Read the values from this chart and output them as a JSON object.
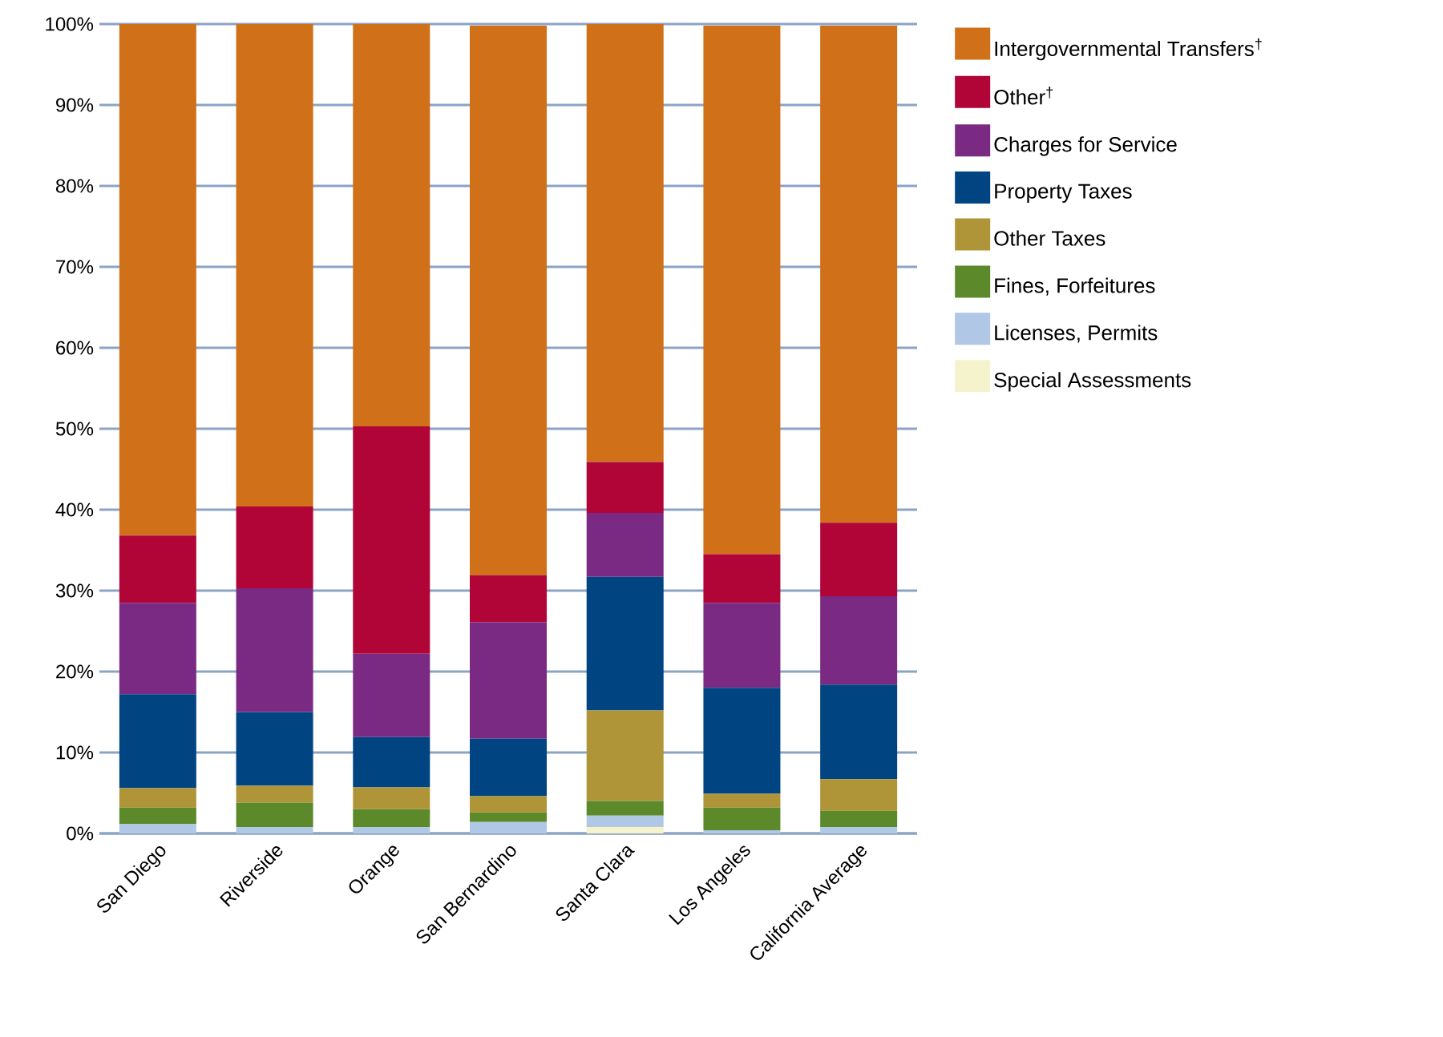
{
  "chart_data": {
    "type": "bar",
    "stacked": true,
    "grid": "y",
    "legend": "right",
    "categories": [
      "San Diego",
      "Riverside",
      "Orange",
      "San Bernardino",
      "Santa Clara",
      "Los Angeles",
      "California Average"
    ],
    "ylim": [
      0,
      100
    ],
    "yticks": [
      {
        "value": 0,
        "label": "0%"
      },
      {
        "value": 10,
        "label": "10%"
      },
      {
        "value": 20,
        "label": "20%"
      },
      {
        "value": 30,
        "label": "30%"
      },
      {
        "value": 40,
        "label": "40%"
      },
      {
        "value": 50,
        "label": "50%"
      },
      {
        "value": 60,
        "label": "60%"
      },
      {
        "value": 70,
        "label": "70%"
      },
      {
        "value": 80,
        "label": "80%"
      },
      {
        "value": 90,
        "label": "90%"
      },
      {
        "value": 100,
        "label": "100%"
      }
    ],
    "series": [
      {
        "name": "Special Assessments",
        "color": "#f5f3cc",
        "values": [
          0,
          0,
          0,
          null,
          0.8,
          null,
          null
        ]
      },
      {
        "name": "Licenses, Permits",
        "color": "#b0c8e6",
        "values": [
          1.2,
          0.8,
          0.8,
          1.4,
          1.4,
          0.4,
          0.8
        ]
      },
      {
        "name": "Fines, Forfeitures",
        "color": "#5c8a2a",
        "values": [
          2.0,
          3.0,
          2.2,
          1.2,
          1.8,
          2.8,
          2.0
        ]
      },
      {
        "name": "Other Taxes",
        "color": "#b09538",
        "values": [
          2.4,
          2.1,
          2.7,
          2.0,
          11.2,
          1.7,
          3.9
        ]
      },
      {
        "name": "Property Taxes",
        "color": "#004581",
        "values": [
          11.6,
          9.1,
          6.2,
          7.1,
          16.5,
          13.1,
          11.7
        ]
      },
      {
        "name": "Charges for Service",
        "color": "#7b2a84",
        "values": [
          11.3,
          15.3,
          10.3,
          14.4,
          7.9,
          10.5,
          10.9
        ]
      },
      {
        "name": "Other$^{†}$",
        "color": "#b10538",
        "values": [
          8.3,
          10.1,
          28.1,
          5.8,
          6.3,
          6.0,
          9.1
        ]
      },
      {
        "name": "Intergovernmental Transfers$^{†}$",
        "color": "#d07018",
        "values": [
          63.2,
          59.6,
          49.7,
          67.9,
          54.1,
          65.3,
          61.4
        ]
      }
    ]
  }
}
